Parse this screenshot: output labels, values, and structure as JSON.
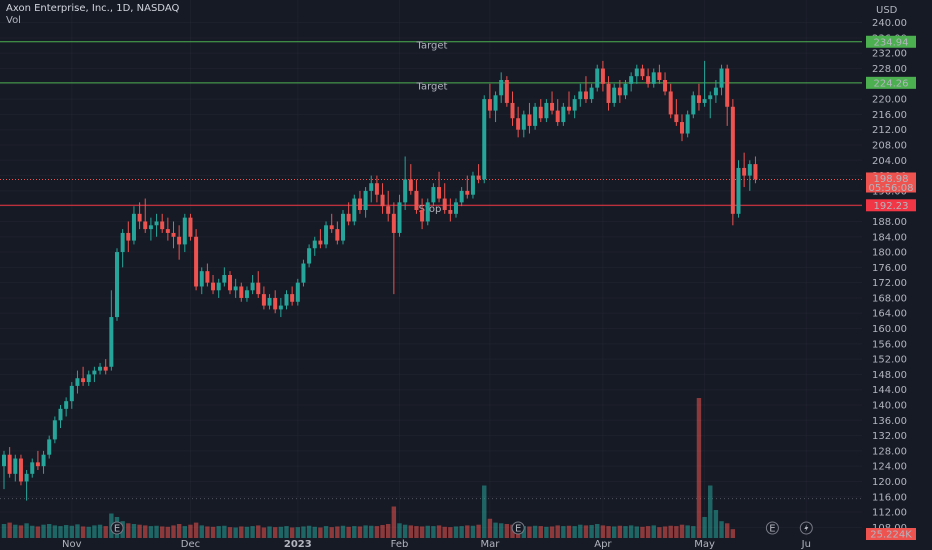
{
  "header": {
    "title": "Axon Enterprise, Inc., 1D, NASDAQ",
    "vol_label": "Vol"
  },
  "colors": {
    "background": "#161a25",
    "up": "#26a69a",
    "down": "#ef5350",
    "target_line": "#4caf50",
    "stop_line": "#f23645",
    "grid": "#2a2e39",
    "axis_text": "#b2b5be"
  },
  "chart_data": {
    "type": "candlestick",
    "symbol": "Axon Enterprise, Inc.",
    "interval": "1D",
    "exchange": "NASDAQ",
    "currency": "USD",
    "ylim": [
      106,
      242
    ],
    "y_ticks": [
      108,
      112,
      116,
      120,
      124,
      128,
      132,
      136,
      140,
      144,
      148,
      152,
      156,
      160,
      164,
      168,
      172,
      176,
      180,
      184,
      188,
      192,
      196,
      200,
      204,
      208,
      212,
      216,
      220,
      224,
      228,
      232,
      236,
      240
    ],
    "x_ticks": [
      "Nov",
      "Dec",
      "2023",
      "Feb",
      "Mar",
      "Apr",
      "May",
      "Ju"
    ],
    "x_tick_index": [
      12,
      33,
      52,
      70,
      86,
      106,
      124,
      142
    ],
    "x_count": 144,
    "levels": [
      {
        "label": "Target",
        "value": 235.0,
        "axis_label": "234.94",
        "kind": "target"
      },
      {
        "label": "Target",
        "value": 224.26,
        "axis_label": "224.26",
        "kind": "target"
      },
      {
        "label": "Stop",
        "value": 192.23,
        "axis_label": "192.23",
        "kind": "stop"
      }
    ],
    "last_price": {
      "value": 198.98,
      "label": "198.98",
      "countdown": "05:56:08"
    },
    "volume_last_label": "25.224K",
    "candles_ohlc": [
      [
        124,
        128,
        118,
        127
      ],
      [
        127,
        129,
        121,
        122
      ],
      [
        122,
        127,
        120,
        126
      ],
      [
        126,
        127,
        119,
        120
      ],
      [
        120,
        123,
        115,
        122
      ],
      [
        122,
        126,
        121,
        125
      ],
      [
        125,
        128,
        123,
        124
      ],
      [
        124,
        128,
        122,
        127
      ],
      [
        127,
        132,
        126,
        131
      ],
      [
        131,
        137,
        130,
        136
      ],
      [
        136,
        140,
        134,
        139
      ],
      [
        139,
        142,
        137,
        141
      ],
      [
        141,
        146,
        139,
        145
      ],
      [
        145,
        149,
        143,
        147
      ],
      [
        147,
        150,
        145,
        146
      ],
      [
        146,
        149,
        145,
        148
      ],
      [
        148,
        150,
        146,
        149
      ],
      [
        149,
        151,
        148,
        150
      ],
      [
        150,
        152,
        148,
        149
      ],
      [
        150,
        170,
        149,
        163
      ],
      [
        163,
        181,
        162,
        180
      ],
      [
        180,
        186,
        176,
        185
      ],
      [
        185,
        188,
        180,
        183
      ],
      [
        183,
        192,
        182,
        190
      ],
      [
        190,
        193,
        186,
        188
      ],
      [
        188,
        194,
        185,
        186
      ],
      [
        186,
        189,
        183,
        187
      ],
      [
        187,
        190,
        184,
        188
      ],
      [
        188,
        190,
        185,
        186
      ],
      [
        186,
        189,
        183,
        185
      ],
      [
        185,
        188,
        181,
        184
      ],
      [
        184,
        187,
        178,
        182
      ],
      [
        182,
        190,
        180,
        189
      ],
      [
        189,
        190,
        183,
        184
      ],
      [
        184,
        186,
        170,
        171
      ],
      [
        171,
        176,
        169,
        175
      ],
      [
        175,
        177,
        171,
        172
      ],
      [
        172,
        174,
        169,
        170
      ],
      [
        170,
        173,
        168,
        172
      ],
      [
        172,
        176,
        171,
        174
      ],
      [
        174,
        175,
        169,
        170
      ],
      [
        170,
        173,
        168,
        171
      ],
      [
        171,
        172,
        167,
        168
      ],
      [
        168,
        171,
        167,
        170
      ],
      [
        170,
        174,
        169,
        172
      ],
      [
        172,
        175,
        168,
        169
      ],
      [
        169,
        171,
        165,
        166
      ],
      [
        166,
        169,
        165,
        168
      ],
      [
        168,
        170,
        164,
        165
      ],
      [
        165,
        168,
        163,
        166
      ],
      [
        166,
        170,
        165,
        169
      ],
      [
        169,
        171,
        166,
        167
      ],
      [
        167,
        173,
        166,
        172
      ],
      [
        172,
        178,
        171,
        177
      ],
      [
        177,
        182,
        176,
        181
      ],
      [
        181,
        184,
        179,
        183
      ],
      [
        183,
        186,
        181,
        182
      ],
      [
        182,
        188,
        181,
        187
      ],
      [
        187,
        190,
        185,
        186
      ],
      [
        186,
        188,
        182,
        183
      ],
      [
        183,
        191,
        182,
        190
      ],
      [
        190,
        193,
        187,
        188
      ],
      [
        188,
        195,
        187,
        194
      ],
      [
        194,
        196,
        190,
        191
      ],
      [
        191,
        197,
        189,
        196
      ],
      [
        196,
        200,
        193,
        198
      ],
      [
        198,
        200,
        193,
        195
      ],
      [
        195,
        198,
        190,
        192
      ],
      [
        192,
        196,
        188,
        190
      ],
      [
        190,
        193,
        169,
        185
      ],
      [
        185,
        195,
        184,
        193
      ],
      [
        193,
        205,
        191,
        199
      ],
      [
        199,
        203,
        195,
        196
      ],
      [
        196,
        199,
        190,
        191
      ],
      [
        191,
        194,
        186,
        188
      ],
      [
        188,
        194,
        187,
        193
      ],
      [
        193,
        198,
        192,
        197
      ],
      [
        197,
        201,
        193,
        194
      ],
      [
        194,
        198,
        190,
        191
      ],
      [
        191,
        194,
        188,
        190
      ],
      [
        190,
        194,
        189,
        193
      ],
      [
        193,
        197,
        192,
        196
      ],
      [
        196,
        200,
        194,
        195
      ],
      [
        195,
        201,
        194,
        200
      ],
      [
        200,
        203,
        198,
        199
      ],
      [
        199,
        221,
        198,
        220
      ],
      [
        220,
        224,
        215,
        217
      ],
      [
        217,
        222,
        214,
        221
      ],
      [
        221,
        227,
        219,
        225
      ],
      [
        225,
        226,
        218,
        219
      ],
      [
        219,
        222,
        213,
        215
      ],
      [
        215,
        218,
        210,
        212
      ],
      [
        212,
        217,
        210,
        216
      ],
      [
        216,
        219,
        211,
        213
      ],
      [
        213,
        219,
        212,
        218
      ],
      [
        218,
        220,
        214,
        215
      ],
      [
        215,
        220,
        214,
        219
      ],
      [
        219,
        222,
        216,
        217
      ],
      [
        217,
        220,
        213,
        214
      ],
      [
        214,
        219,
        213,
        218
      ],
      [
        218,
        222,
        216,
        217
      ],
      [
        217,
        221,
        215,
        220
      ],
      [
        220,
        224,
        218,
        222
      ],
      [
        222,
        226,
        219,
        220
      ],
      [
        220,
        224,
        219,
        223
      ],
      [
        223,
        229,
        222,
        228
      ],
      [
        228,
        230,
        222,
        224
      ],
      [
        224,
        226,
        217,
        219
      ],
      [
        219,
        224,
        218,
        223
      ],
      [
        223,
        225,
        219,
        221
      ],
      [
        221,
        225,
        220,
        224
      ],
      [
        224,
        227,
        222,
        226
      ],
      [
        226,
        229,
        224,
        228
      ],
      [
        228,
        229,
        225,
        226
      ],
      [
        226,
        228,
        223,
        224
      ],
      [
        224,
        228,
        223,
        227
      ],
      [
        227,
        229,
        224,
        225
      ],
      [
        225,
        227,
        221,
        222
      ],
      [
        222,
        224,
        215,
        216
      ],
      [
        216,
        220,
        213,
        214
      ],
      [
        214,
        216,
        209,
        211
      ],
      [
        211,
        217,
        210,
        216
      ],
      [
        216,
        222,
        215,
        221
      ],
      [
        221,
        224,
        217,
        219
      ],
      [
        219,
        230,
        218,
        220
      ],
      [
        220,
        222,
        215,
        221
      ],
      [
        221,
        225,
        219,
        223
      ],
      [
        223,
        229,
        221,
        228
      ],
      [
        228,
        229,
        213,
        218
      ],
      [
        218,
        220,
        187,
        190
      ],
      [
        190,
        204,
        189,
        202
      ],
      [
        202,
        206,
        197,
        200
      ],
      [
        200,
        204,
        196,
        203
      ],
      [
        203,
        205,
        198,
        199
      ]
    ],
    "candle_is_up": [
      true,
      false,
      true,
      false,
      true,
      true,
      false,
      true,
      true,
      true,
      true,
      true,
      true,
      true,
      false,
      true,
      true,
      true,
      false,
      true,
      true,
      true,
      false,
      true,
      false,
      false,
      true,
      true,
      false,
      false,
      false,
      false,
      true,
      false,
      false,
      true,
      false,
      false,
      true,
      true,
      false,
      true,
      false,
      true,
      true,
      false,
      false,
      true,
      false,
      true,
      true,
      false,
      true,
      true,
      true,
      true,
      false,
      true,
      false,
      false,
      true,
      false,
      true,
      false,
      true,
      true,
      false,
      false,
      false,
      false,
      true,
      true,
      false,
      false,
      false,
      true,
      true,
      false,
      false,
      false,
      true,
      true,
      false,
      true,
      false,
      true,
      false,
      true,
      true,
      false,
      false,
      false,
      true,
      false,
      true,
      false,
      true,
      false,
      false,
      true,
      false,
      true,
      true,
      false,
      true,
      true,
      false,
      false,
      true,
      false,
      true,
      true,
      true,
      false,
      false,
      true,
      false,
      false,
      false,
      false,
      false,
      true,
      true,
      false,
      true,
      true,
      true,
      true,
      false,
      false,
      true,
      false,
      true,
      false
    ],
    "volumes_k": [
      40,
      44,
      38,
      36,
      42,
      35,
      33,
      38,
      40,
      36,
      34,
      37,
      35,
      39,
      33,
      32,
      36,
      38,
      34,
      70,
      60,
      48,
      42,
      40,
      38,
      36,
      34,
      35,
      33,
      32,
      36,
      40,
      34,
      38,
      44,
      36,
      33,
      32,
      34,
      35,
      31,
      30,
      33,
      32,
      34,
      36,
      30,
      33,
      31,
      32,
      34,
      30,
      31,
      33,
      35,
      32,
      30,
      34,
      31,
      33,
      35,
      32,
      34,
      33,
      36,
      35,
      34,
      37,
      40,
      90,
      42,
      38,
      36,
      34,
      33,
      35,
      34,
      36,
      32,
      31,
      33,
      34,
      36,
      35,
      38,
      150,
      55,
      44,
      42,
      40,
      38,
      36,
      34,
      33,
      35,
      34,
      32,
      33,
      36,
      34,
      35,
      34,
      38,
      36,
      37,
      40,
      36,
      34,
      33,
      35,
      34,
      36,
      33,
      32,
      34,
      36,
      31,
      33,
      35,
      34,
      38,
      36,
      34,
      400,
      60,
      150,
      80,
      48,
      42,
      25.224
    ]
  }
}
